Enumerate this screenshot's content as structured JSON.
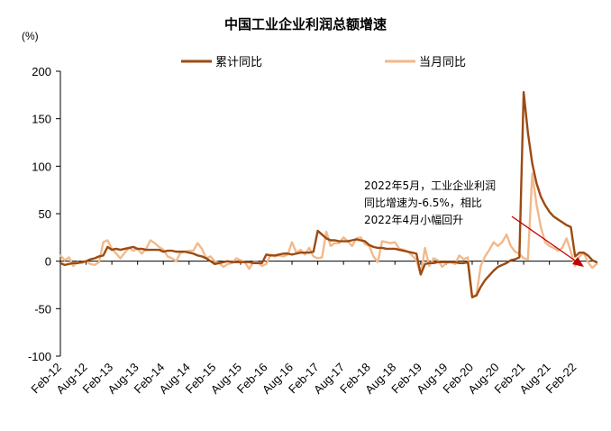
{
  "chart_data": {
    "type": "line",
    "title": "中国工业企业利润总额增速",
    "unit_label": "(%)",
    "ylim": [
      -100,
      200
    ],
    "yticks": [
      -100,
      -50,
      0,
      50,
      100,
      150,
      200
    ],
    "xtick_labels": [
      "Feb-12",
      "Aug-12",
      "Feb-13",
      "Aug-13",
      "Feb-14",
      "Aug-14",
      "Feb-15",
      "Aug-15",
      "Feb-16",
      "Aug-16",
      "Feb-17",
      "Aug-17",
      "Feb-18",
      "Aug-18",
      "Feb-19",
      "Aug-19",
      "Feb-20",
      "Aug-20",
      "Feb-21",
      "Aug-21",
      "Feb-22"
    ],
    "legend_position": "top",
    "grid": false,
    "series": [
      {
        "name": "累计同比",
        "color": "#9C4A12",
        "values": [
          -2,
          -4,
          -3,
          -2,
          -2,
          -1,
          0,
          2,
          3,
          5,
          6,
          15,
          12,
          13,
          12,
          13,
          14,
          15,
          13,
          13,
          12,
          12,
          12,
          12,
          10,
          11,
          11,
          10,
          10,
          10,
          9,
          8,
          6,
          5,
          3,
          0,
          -3,
          -2,
          -1,
          0,
          -1,
          -1,
          -1,
          -1,
          -1,
          -2,
          -2,
          -2,
          7,
          6,
          6,
          7,
          8,
          8,
          7,
          8,
          9,
          9,
          9,
          10,
          32,
          28,
          24,
          22,
          22,
          21,
          21,
          21,
          22,
          23,
          22,
          21,
          17,
          15,
          14,
          14,
          13,
          13,
          13,
          12,
          11,
          10,
          9,
          8,
          -14,
          -3,
          -2,
          -2,
          -1,
          -1,
          -1,
          -1,
          -1,
          -2,
          -2,
          -1,
          -38,
          -36,
          -27,
          -20,
          -15,
          -10,
          -6,
          -4,
          -2,
          1,
          2,
          4,
          178,
          135,
          103,
          82,
          68,
          59,
          52,
          47,
          44,
          41,
          38,
          36,
          5,
          9,
          9,
          6,
          1,
          -1
        ]
      },
      {
        "name": "当月同比",
        "color": "#F2B98A",
        "values": [
          6,
          1,
          4,
          -5,
          -1,
          -2,
          0,
          -3,
          -4,
          -1,
          20,
          22,
          13,
          8,
          3,
          9,
          14,
          11,
          13,
          8,
          13,
          22,
          19,
          15,
          12,
          5,
          3,
          0,
          9,
          10,
          11,
          11,
          19,
          13,
          3,
          5,
          0,
          -2,
          -6,
          -3,
          -2,
          3,
          1,
          -1,
          -8,
          -1,
          -1,
          -5,
          -3,
          7,
          5,
          6,
          5,
          7,
          20,
          9,
          12,
          7,
          14,
          5,
          3,
          4,
          31,
          16,
          19,
          19,
          25,
          21,
          16,
          24,
          25,
          18,
          16,
          5,
          -1,
          21,
          20,
          19,
          20,
          13,
          12,
          10,
          6,
          1,
          -14,
          14,
          -5,
          3,
          1,
          -6,
          -2,
          -1,
          -3,
          6,
          2,
          4,
          -38,
          -35,
          -5,
          5,
          12,
          20,
          16,
          20,
          28,
          16,
          10,
          8,
          3,
          2,
          92,
          60,
          36,
          20,
          16,
          14,
          11,
          14,
          24,
          10,
          -5,
          5,
          9,
          -1,
          -7,
          -3
        ]
      }
    ],
    "annotation": {
      "lines": [
        "2022年5月，工业企业利润",
        "同比增速为-6.5%，相比",
        "2022年4月小幅回升"
      ]
    }
  }
}
